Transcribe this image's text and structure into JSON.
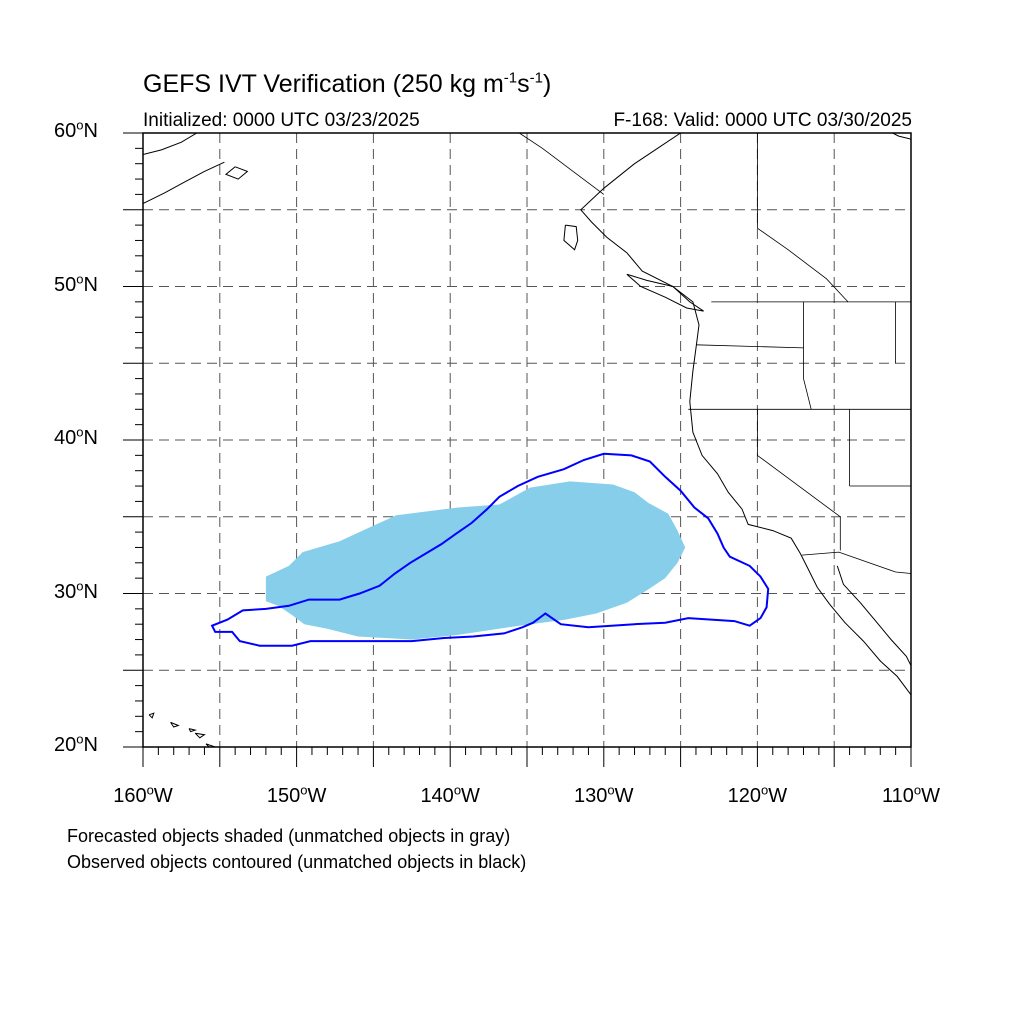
{
  "title": {
    "prefix": "GEFS IVT Verification (250 kg m",
    "exp1": "-1",
    "mid": "s",
    "exp2": "-1",
    "suffix": ")"
  },
  "subtitle_left": "Initialized: 0000 UTC 03/23/2025",
  "subtitle_right": "F-168: Valid: 0000 UTC 03/30/2025",
  "map": {
    "lon_range": [
      -160,
      -110
    ],
    "lat_range": [
      20,
      60
    ],
    "lat_labels": [
      {
        "lat": 60,
        "num": "60",
        "unit": "N"
      },
      {
        "lat": 50,
        "num": "50",
        "unit": "N"
      },
      {
        "lat": 40,
        "num": "40",
        "unit": "N"
      },
      {
        "lat": 30,
        "num": "30",
        "unit": "N"
      },
      {
        "lat": 20,
        "num": "20",
        "unit": "N"
      }
    ],
    "lon_labels": [
      {
        "lon": -160,
        "num": "160",
        "unit": "W"
      },
      {
        "lon": -150,
        "num": "150",
        "unit": "W"
      },
      {
        "lon": -140,
        "num": "140",
        "unit": "W"
      },
      {
        "lon": -130,
        "num": "130",
        "unit": "W"
      },
      {
        "lon": -120,
        "num": "120",
        "unit": "W"
      },
      {
        "lon": -110,
        "num": "110",
        "unit": "W"
      }
    ],
    "gridline_spacing_deg": 5,
    "colors": {
      "forecast_fill": "#87ceeb",
      "observed_contour": "#0000ff",
      "coastline": "#000000",
      "grid": "#555555"
    }
  },
  "forecast_object": {
    "lonlat": [
      [
        -152.0,
        30.2
      ],
      [
        -152.0,
        31.1
      ],
      [
        -150.5,
        31.8
      ],
      [
        -149.6,
        32.7
      ],
      [
        -147.2,
        33.4
      ],
      [
        -145.7,
        34.1
      ],
      [
        -143.5,
        35.1
      ],
      [
        -139.5,
        35.6
      ],
      [
        -136.8,
        35.8
      ],
      [
        -134.8,
        36.9
      ],
      [
        -132.2,
        37.3
      ],
      [
        -129.4,
        37.1
      ],
      [
        -128.0,
        36.6
      ],
      [
        -127.1,
        35.9
      ],
      [
        -125.8,
        35.2
      ],
      [
        -125.2,
        34.1
      ],
      [
        -124.7,
        33.0
      ],
      [
        -125.2,
        32.0
      ],
      [
        -126.0,
        31.0
      ],
      [
        -127.2,
        30.2
      ],
      [
        -128.5,
        29.4
      ],
      [
        -130.5,
        28.7
      ],
      [
        -132.5,
        28.3
      ],
      [
        -135.5,
        27.9
      ],
      [
        -139.5,
        27.3
      ],
      [
        -142.5,
        27.0
      ],
      [
        -146.0,
        27.2
      ],
      [
        -148.0,
        27.7
      ],
      [
        -149.5,
        28.0
      ],
      [
        -150.3,
        28.6
      ],
      [
        -151.2,
        29.2
      ],
      [
        -152.0,
        29.5
      ]
    ]
  },
  "observed_object": {
    "lonlat": [
      [
        -155.3,
        27.5
      ],
      [
        -154.2,
        27.5
      ],
      [
        -153.7,
        26.9
      ],
      [
        -152.4,
        26.6
      ],
      [
        -150.3,
        26.6
      ],
      [
        -149.1,
        26.9
      ],
      [
        -146.1,
        26.9
      ],
      [
        -142.5,
        26.9
      ],
      [
        -140.4,
        27.1
      ],
      [
        -138.5,
        27.2
      ],
      [
        -136.5,
        27.4
      ],
      [
        -135.3,
        27.8
      ],
      [
        -134.6,
        28.1
      ],
      [
        -133.8,
        28.7
      ],
      [
        -132.8,
        28.0
      ],
      [
        -131.0,
        27.8
      ],
      [
        -129.5,
        27.9
      ],
      [
        -128.0,
        28.0
      ],
      [
        -126.0,
        28.1
      ],
      [
        -124.5,
        28.4
      ],
      [
        -121.5,
        28.2
      ],
      [
        -120.5,
        27.9
      ],
      [
        -119.8,
        28.4
      ],
      [
        -119.4,
        29.1
      ],
      [
        -119.3,
        30.3
      ],
      [
        -119.8,
        31.1
      ],
      [
        -120.5,
        31.8
      ],
      [
        -121.8,
        32.4
      ],
      [
        -122.2,
        33.0
      ],
      [
        -122.6,
        33.9
      ],
      [
        -123.2,
        34.9
      ],
      [
        -124.1,
        35.6
      ],
      [
        -125.0,
        36.7
      ],
      [
        -126.0,
        37.6
      ],
      [
        -127.0,
        38.6
      ],
      [
        -128.2,
        39.0
      ],
      [
        -130.0,
        39.1
      ],
      [
        -131.3,
        38.7
      ],
      [
        -132.6,
        38.1
      ],
      [
        -134.3,
        37.6
      ],
      [
        -135.6,
        37.0
      ],
      [
        -136.8,
        36.3
      ],
      [
        -137.6,
        35.5
      ],
      [
        -138.6,
        34.6
      ],
      [
        -139.6,
        33.9
      ],
      [
        -140.6,
        33.2
      ],
      [
        -141.6,
        32.6
      ],
      [
        -142.6,
        32.0
      ],
      [
        -143.6,
        31.3
      ],
      [
        -144.6,
        30.5
      ],
      [
        -145.9,
        30.0
      ],
      [
        -147.2,
        29.6
      ],
      [
        -149.2,
        29.6
      ],
      [
        -150.5,
        29.2
      ],
      [
        -152.0,
        29.0
      ],
      [
        -153.5,
        28.9
      ],
      [
        -154.5,
        28.3
      ],
      [
        -155.5,
        27.9
      ]
    ]
  },
  "coastlines": [
    [
      [
        -125.0,
        60.0
      ],
      [
        -126.5,
        59.0
      ],
      [
        -128.0,
        58.0
      ],
      [
        -130.0,
        56.4
      ],
      [
        -131.5,
        55.0
      ],
      [
        -130.8,
        54.2
      ],
      [
        -129.8,
        53.2
      ],
      [
        -128.5,
        52.2
      ],
      [
        -127.5,
        51.0
      ],
      [
        -125.5,
        50.0
      ],
      [
        -124.2,
        49.0
      ],
      [
        -123.8,
        47.5
      ],
      [
        -124.0,
        46.0
      ],
      [
        -124.2,
        44.5
      ],
      [
        -124.4,
        42.5
      ],
      [
        -124.2,
        40.5
      ],
      [
        -123.6,
        39.0
      ],
      [
        -122.6,
        37.8
      ],
      [
        -121.9,
        36.6
      ],
      [
        -121.0,
        35.5
      ],
      [
        -120.6,
        34.5
      ],
      [
        -119.0,
        34.1
      ],
      [
        -117.8,
        33.6
      ],
      [
        -117.2,
        32.6
      ],
      [
        -116.7,
        31.6
      ],
      [
        -116.1,
        30.4
      ],
      [
        -115.3,
        29.3
      ],
      [
        -114.3,
        28.1
      ],
      [
        -113.1,
        26.9
      ],
      [
        -112.0,
        25.6
      ],
      [
        -110.9,
        24.6
      ],
      [
        -110.0,
        23.4
      ]
    ],
    [
      [
        -114.8,
        31.8
      ],
      [
        -114.4,
        30.6
      ],
      [
        -113.3,
        29.4
      ],
      [
        -112.3,
        28.2
      ],
      [
        -111.3,
        27.0
      ],
      [
        -110.3,
        25.9
      ],
      [
        -110.0,
        25.3
      ]
    ],
    [
      [
        -132.5,
        54.0
      ],
      [
        -131.8,
        53.9
      ],
      [
        -131.7,
        53.0
      ],
      [
        -131.9,
        52.4
      ],
      [
        -132.6,
        53.0
      ],
      [
        -132.5,
        54.0
      ]
    ],
    [
      [
        -128.5,
        50.8
      ],
      [
        -127.2,
        50.4
      ],
      [
        -125.5,
        50.0
      ],
      [
        -124.4,
        49.0
      ],
      [
        -123.5,
        48.4
      ],
      [
        -124.6,
        48.6
      ],
      [
        -126.0,
        49.3
      ],
      [
        -127.6,
        50.0
      ],
      [
        -128.5,
        50.8
      ]
    ],
    [
      [
        -160.0,
        58.6
      ],
      [
        -158.8,
        58.9
      ],
      [
        -157.5,
        59.4
      ],
      [
        -156.5,
        60.0
      ]
    ],
    [
      [
        -160.0,
        55.4
      ],
      [
        -158.6,
        56.1
      ],
      [
        -157.3,
        56.8
      ],
      [
        -156.0,
        57.5
      ],
      [
        -154.7,
        58.1
      ]
    ],
    [
      [
        -154.0,
        57.8
      ],
      [
        -153.2,
        57.5
      ],
      [
        -153.8,
        57.0
      ],
      [
        -154.6,
        57.3
      ],
      [
        -154.0,
        57.8
      ]
    ],
    [
      [
        -110.0,
        59.6
      ],
      [
        -110.8,
        59.8
      ],
      [
        -111.2,
        60.0
      ]
    ],
    [
      [
        -159.6,
        22.1
      ],
      [
        -159.3,
        22.2
      ],
      [
        -159.4,
        21.9
      ],
      [
        -159.6,
        22.1
      ]
    ],
    [
      [
        -158.2,
        21.6
      ],
      [
        -157.7,
        21.4
      ],
      [
        -158.0,
        21.3
      ],
      [
        -158.2,
        21.6
      ]
    ],
    [
      [
        -157.0,
        21.2
      ],
      [
        -156.6,
        21.1
      ],
      [
        -156.9,
        21.0
      ],
      [
        -157.0,
        21.2
      ]
    ],
    [
      [
        -156.6,
        20.9
      ],
      [
        -156.0,
        20.8
      ],
      [
        -156.3,
        20.6
      ],
      [
        -156.6,
        20.9
      ]
    ],
    [
      [
        -155.9,
        20.2
      ],
      [
        -155.0,
        19.9
      ],
      [
        -155.6,
        19.9
      ],
      [
        -155.9,
        20.2
      ]
    ]
  ],
  "borders": [
    [
      [
        -123.0,
        49.0
      ],
      [
        -110.0,
        49.0
      ]
    ],
    [
      [
        -124.5,
        42.0
      ],
      [
        -110.0,
        42.0
      ]
    ],
    [
      [
        -124.0,
        46.2
      ],
      [
        -117.0,
        46.0
      ]
    ],
    [
      [
        -117.0,
        49.0
      ],
      [
        -117.0,
        44.0
      ],
      [
        -116.5,
        42.0
      ]
    ],
    [
      [
        -120.0,
        42.0
      ],
      [
        -120.0,
        39.0
      ],
      [
        -114.6,
        35.0
      ],
      [
        -114.6,
        32.8
      ]
    ],
    [
      [
        -114.0,
        42.0
      ],
      [
        -114.0,
        37.0
      ]
    ],
    [
      [
        -111.0,
        49.0
      ],
      [
        -111.0,
        45.0
      ]
    ],
    [
      [
        -117.1,
        32.5
      ],
      [
        -114.7,
        32.7
      ],
      [
        -111.0,
        31.4
      ],
      [
        -110.0,
        31.3
      ]
    ],
    [
      [
        -114.0,
        37.0
      ],
      [
        -110.0,
        37.0
      ]
    ],
    [
      [
        -130.0,
        56.0
      ],
      [
        -132.0,
        57.5
      ],
      [
        -134.0,
        59.0
      ],
      [
        -135.5,
        60.0
      ]
    ],
    [
      [
        -120.0,
        60.0
      ],
      [
        -120.0,
        53.8
      ],
      [
        -118.0,
        52.4
      ],
      [
        -115.5,
        50.5
      ],
      [
        -114.1,
        49.0
      ]
    ],
    [
      [
        -110.0,
        60.0
      ],
      [
        -110.0,
        49.0
      ]
    ]
  ],
  "caption_forecast": "Forecasted objects shaded (unmatched objects in gray)",
  "caption_observed": "Observed objects contoured (unmatched objects in black)"
}
